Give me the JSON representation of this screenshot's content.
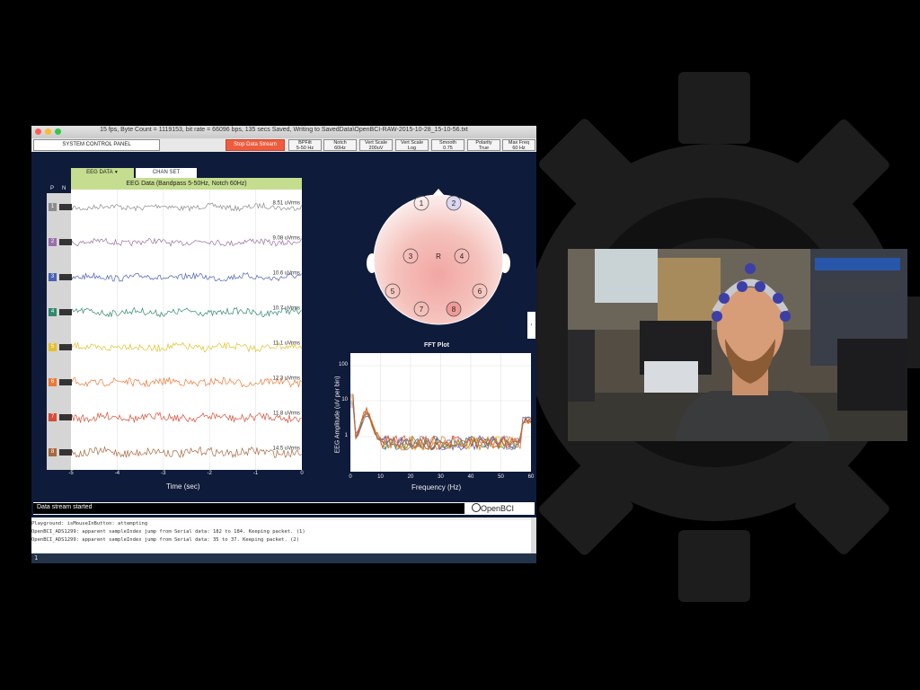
{
  "window": {
    "title": "15 fps, Byte Count = 1119153, bit rate = 66096 bps, 135 secs Saved, Writing to SavedData\\OpenBCI-RAW-2015-10-28_15-10-56.txt",
    "traffic_light_colors": [
      "#fc5f57",
      "#fdbc2e",
      "#33c748"
    ]
  },
  "controls": {
    "system_panel": "SYSTEM CONTROL PANEL",
    "stop_stream": "Stop Data Stream",
    "settings": [
      {
        "label": "BPFilt",
        "value": "5-50 Hz"
      },
      {
        "label": "Notch",
        "value": "60Hz"
      },
      {
        "label": "Vert Scale",
        "value": "200uV"
      },
      {
        "label": "Vert Scale",
        "value": "Log"
      },
      {
        "label": "Smooth",
        "value": "0.75"
      },
      {
        "label": "Polarity",
        "value": "True"
      },
      {
        "label": "Max Freq",
        "value": "60 Hz"
      }
    ]
  },
  "tabs": {
    "eeg": "EEG DATA",
    "chan": "CHAN SET"
  },
  "eeg": {
    "title": "EEG Data (Bandpass 5-50Hz, Notch 60Hz)",
    "p_header": "P",
    "n_header": "N",
    "xlabel": "Time (sec)",
    "xticks": [
      "-5",
      "-4",
      "-3",
      "-2",
      "-1",
      "0"
    ],
    "channels": [
      {
        "num": "1",
        "color": "#8c8c8c",
        "rms": "8.51 uVrms"
      },
      {
        "num": "2",
        "color": "#9a70a8",
        "rms": "9.08 uVrms"
      },
      {
        "num": "3",
        "color": "#4a61b5",
        "rms": "10.6 uVrms"
      },
      {
        "num": "4",
        "color": "#2f8a6e",
        "rms": "10.7 uVrms"
      },
      {
        "num": "5",
        "color": "#e2c12a",
        "rms": "11.1 uVrms"
      },
      {
        "num": "6",
        "color": "#ec7a36",
        "rms": "12.3 uVrms"
      },
      {
        "num": "7",
        "color": "#d94c35",
        "rms": "11.8 uVrms"
      },
      {
        "num": "8",
        "color": "#a8683f",
        "rms": "14.5 uVrms"
      }
    ]
  },
  "headplot": {
    "electrodes": [
      "1",
      "2",
      "3",
      "4",
      "5",
      "6",
      "7",
      "8"
    ],
    "ref": "R"
  },
  "fft": {
    "title": "FFT Plot",
    "ylabel": "EEG Amplitude (uV per bin)",
    "xlabel": "Frequency (Hz)",
    "yticks": [
      "100",
      "10",
      "1"
    ],
    "xticks": [
      "0",
      "10",
      "20",
      "30",
      "40",
      "50",
      "60"
    ]
  },
  "status": {
    "text": "Data stream started",
    "logo": "OpenBCI"
  },
  "console": {
    "lines": [
      "Playground: isMouseInButton: attempting",
      "OpenBCI_ADS1299: apparent sampleIndex jump from Serial data: 182 to  184.  Keeping packet. (1)",
      "OpenBCI_ADS1299: apparent sampleIndex jump from Serial data: 35 to  37.  Keeping packet. (2)"
    ],
    "input": "1"
  }
}
